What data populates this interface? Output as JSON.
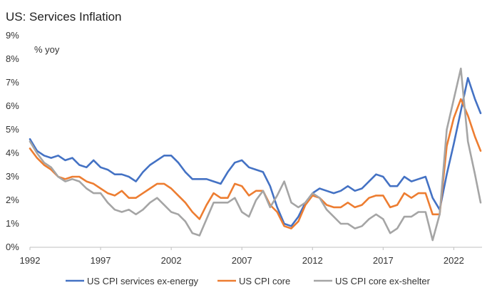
{
  "title": "US: Services Inflation",
  "chart_data": {
    "type": "line",
    "title": "US: Services Inflation",
    "ylabel": "% yoy",
    "xlabel": "",
    "xlim": [
      1992,
      2024
    ],
    "ylim": [
      0,
      9
    ],
    "x_ticks": [
      "1992",
      "1997",
      "2002",
      "2007",
      "2012",
      "2017",
      "2022"
    ],
    "y_ticks": [
      "0%",
      "1%",
      "2%",
      "3%",
      "4%",
      "5%",
      "6%",
      "7%",
      "8%",
      "9%"
    ],
    "grid": false,
    "legend_position": "bottom",
    "series": [
      {
        "name": "US CPI services ex-energy",
        "color": "#4472C4",
        "points": [
          [
            1992.0,
            4.6
          ],
          [
            1992.5,
            4.1
          ],
          [
            1993.0,
            3.9
          ],
          [
            1993.5,
            3.8
          ],
          [
            1994.0,
            3.9
          ],
          [
            1994.5,
            3.7
          ],
          [
            1995.0,
            3.8
          ],
          [
            1995.5,
            3.5
          ],
          [
            1996.0,
            3.4
          ],
          [
            1996.5,
            3.7
          ],
          [
            1997.0,
            3.4
          ],
          [
            1997.5,
            3.3
          ],
          [
            1998.0,
            3.1
          ],
          [
            1998.5,
            3.1
          ],
          [
            1999.0,
            3.0
          ],
          [
            1999.5,
            2.8
          ],
          [
            2000.0,
            3.2
          ],
          [
            2000.5,
            3.5
          ],
          [
            2001.0,
            3.7
          ],
          [
            2001.5,
            3.9
          ],
          [
            2002.0,
            3.9
          ],
          [
            2002.5,
            3.6
          ],
          [
            2003.0,
            3.2
          ],
          [
            2003.5,
            2.9
          ],
          [
            2004.0,
            2.9
          ],
          [
            2004.5,
            2.9
          ],
          [
            2005.0,
            2.8
          ],
          [
            2005.5,
            2.7
          ],
          [
            2006.0,
            3.2
          ],
          [
            2006.5,
            3.6
          ],
          [
            2007.0,
            3.7
          ],
          [
            2007.5,
            3.4
          ],
          [
            2008.0,
            3.3
          ],
          [
            2008.5,
            3.2
          ],
          [
            2009.0,
            2.6
          ],
          [
            2009.5,
            1.7
          ],
          [
            2010.0,
            1.0
          ],
          [
            2010.5,
            0.9
          ],
          [
            2011.0,
            1.3
          ],
          [
            2011.5,
            1.9
          ],
          [
            2012.0,
            2.3
          ],
          [
            2012.5,
            2.5
          ],
          [
            2013.0,
            2.4
          ],
          [
            2013.5,
            2.3
          ],
          [
            2014.0,
            2.4
          ],
          [
            2014.5,
            2.6
          ],
          [
            2015.0,
            2.4
          ],
          [
            2015.5,
            2.5
          ],
          [
            2016.0,
            2.8
          ],
          [
            2016.5,
            3.1
          ],
          [
            2017.0,
            3.0
          ],
          [
            2017.5,
            2.6
          ],
          [
            2018.0,
            2.6
          ],
          [
            2018.5,
            3.0
          ],
          [
            2019.0,
            2.8
          ],
          [
            2019.5,
            2.9
          ],
          [
            2020.0,
            3.0
          ],
          [
            2020.5,
            2.1
          ],
          [
            2021.0,
            1.6
          ],
          [
            2021.5,
            3.1
          ],
          [
            2022.0,
            4.4
          ],
          [
            2022.5,
            5.8
          ],
          [
            2023.0,
            7.2
          ],
          [
            2023.5,
            6.3
          ],
          [
            2023.9,
            5.7
          ]
        ]
      },
      {
        "name": "US CPI core",
        "color": "#ED7D31",
        "points": [
          [
            1992.0,
            4.2
          ],
          [
            1992.5,
            3.8
          ],
          [
            1993.0,
            3.5
          ],
          [
            1993.5,
            3.3
          ],
          [
            1994.0,
            3.0
          ],
          [
            1994.5,
            2.9
          ],
          [
            1995.0,
            3.0
          ],
          [
            1995.5,
            3.0
          ],
          [
            1996.0,
            2.8
          ],
          [
            1996.5,
            2.7
          ],
          [
            1997.0,
            2.5
          ],
          [
            1997.5,
            2.3
          ],
          [
            1998.0,
            2.2
          ],
          [
            1998.5,
            2.4
          ],
          [
            1999.0,
            2.1
          ],
          [
            1999.5,
            2.1
          ],
          [
            2000.0,
            2.3
          ],
          [
            2000.5,
            2.5
          ],
          [
            2001.0,
            2.7
          ],
          [
            2001.5,
            2.7
          ],
          [
            2002.0,
            2.5
          ],
          [
            2002.5,
            2.2
          ],
          [
            2003.0,
            1.9
          ],
          [
            2003.5,
            1.5
          ],
          [
            2004.0,
            1.2
          ],
          [
            2004.5,
            1.8
          ],
          [
            2005.0,
            2.3
          ],
          [
            2005.5,
            2.1
          ],
          [
            2006.0,
            2.1
          ],
          [
            2006.5,
            2.7
          ],
          [
            2007.0,
            2.6
          ],
          [
            2007.5,
            2.2
          ],
          [
            2008.0,
            2.4
          ],
          [
            2008.5,
            2.4
          ],
          [
            2009.0,
            1.8
          ],
          [
            2009.5,
            1.5
          ],
          [
            2010.0,
            0.9
          ],
          [
            2010.5,
            0.8
          ],
          [
            2011.0,
            1.1
          ],
          [
            2011.5,
            1.8
          ],
          [
            2012.0,
            2.2
          ],
          [
            2012.5,
            2.1
          ],
          [
            2013.0,
            1.8
          ],
          [
            2013.5,
            1.7
          ],
          [
            2014.0,
            1.7
          ],
          [
            2014.5,
            1.9
          ],
          [
            2015.0,
            1.7
          ],
          [
            2015.5,
            1.8
          ],
          [
            2016.0,
            2.1
          ],
          [
            2016.5,
            2.2
          ],
          [
            2017.0,
            2.2
          ],
          [
            2017.5,
            1.7
          ],
          [
            2018.0,
            1.8
          ],
          [
            2018.5,
            2.3
          ],
          [
            2019.0,
            2.1
          ],
          [
            2019.5,
            2.3
          ],
          [
            2020.0,
            2.3
          ],
          [
            2020.5,
            1.4
          ],
          [
            2021.0,
            1.4
          ],
          [
            2021.5,
            4.3
          ],
          [
            2022.0,
            5.5
          ],
          [
            2022.5,
            6.3
          ],
          [
            2023.0,
            5.6
          ],
          [
            2023.5,
            4.7
          ],
          [
            2023.9,
            4.1
          ]
        ]
      },
      {
        "name": "US CPI core ex-shelter",
        "color": "#A5A5A5",
        "points": [
          [
            1992.0,
            4.5
          ],
          [
            1992.5,
            4.0
          ],
          [
            1993.0,
            3.6
          ],
          [
            1993.5,
            3.4
          ],
          [
            1994.0,
            3.0
          ],
          [
            1994.5,
            2.8
          ],
          [
            1995.0,
            2.9
          ],
          [
            1995.5,
            2.8
          ],
          [
            1996.0,
            2.5
          ],
          [
            1996.5,
            2.3
          ],
          [
            1997.0,
            2.3
          ],
          [
            1997.5,
            1.9
          ],
          [
            1998.0,
            1.6
          ],
          [
            1998.5,
            1.5
          ],
          [
            1999.0,
            1.6
          ],
          [
            1999.5,
            1.4
          ],
          [
            2000.0,
            1.6
          ],
          [
            2000.5,
            1.9
          ],
          [
            2001.0,
            2.1
          ],
          [
            2001.5,
            1.8
          ],
          [
            2002.0,
            1.5
          ],
          [
            2002.5,
            1.4
          ],
          [
            2003.0,
            1.1
          ],
          [
            2003.5,
            0.6
          ],
          [
            2004.0,
            0.5
          ],
          [
            2004.5,
            1.2
          ],
          [
            2005.0,
            1.9
          ],
          [
            2005.5,
            1.9
          ],
          [
            2006.0,
            1.9
          ],
          [
            2006.5,
            2.1
          ],
          [
            2007.0,
            1.5
          ],
          [
            2007.5,
            1.3
          ],
          [
            2008.0,
            2.0
          ],
          [
            2008.5,
            2.4
          ],
          [
            2009.0,
            1.7
          ],
          [
            2009.5,
            2.2
          ],
          [
            2010.0,
            2.8
          ],
          [
            2010.5,
            1.9
          ],
          [
            2011.0,
            1.7
          ],
          [
            2011.5,
            1.9
          ],
          [
            2012.0,
            2.3
          ],
          [
            2012.5,
            2.1
          ],
          [
            2013.0,
            1.6
          ],
          [
            2013.5,
            1.3
          ],
          [
            2014.0,
            1.0
          ],
          [
            2014.5,
            1.0
          ],
          [
            2015.0,
            0.8
          ],
          [
            2015.5,
            0.9
          ],
          [
            2016.0,
            1.2
          ],
          [
            2016.5,
            1.4
          ],
          [
            2017.0,
            1.2
          ],
          [
            2017.5,
            0.6
          ],
          [
            2018.0,
            0.8
          ],
          [
            2018.5,
            1.3
          ],
          [
            2019.0,
            1.3
          ],
          [
            2019.5,
            1.5
          ],
          [
            2020.0,
            1.5
          ],
          [
            2020.5,
            0.3
          ],
          [
            2021.0,
            1.4
          ],
          [
            2021.5,
            5.0
          ],
          [
            2022.0,
            6.3
          ],
          [
            2022.5,
            7.6
          ],
          [
            2023.0,
            4.5
          ],
          [
            2023.5,
            3.1
          ],
          [
            2023.9,
            1.9
          ]
        ]
      }
    ]
  }
}
